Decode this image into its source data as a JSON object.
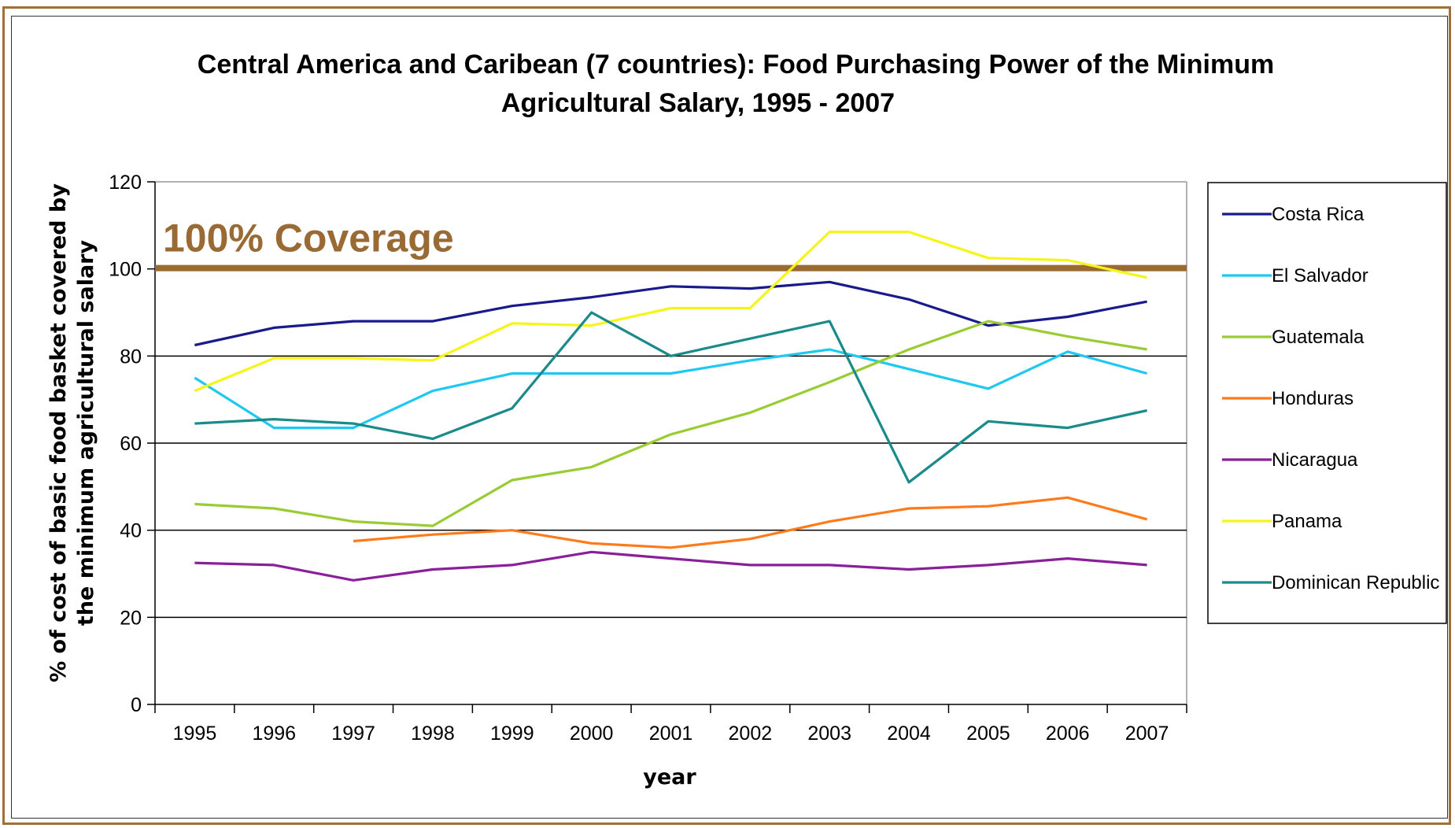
{
  "chart_data": {
    "type": "line",
    "title_line1": "Central America and Caribean (7 countries): Food Purchasing Power of the Minimum",
    "title_line2": "Agricultural Salary, 1995 - 2007",
    "xlabel": "year",
    "ylabel_line1": "% of cost of basic food basket covered by",
    "ylabel_line2": "the minimum  agricultural  salary",
    "ylim": [
      0,
      120
    ],
    "yticks": [
      0,
      20,
      40,
      60,
      80,
      100,
      120
    ],
    "grid": "horizontal",
    "legend_position": "right",
    "categories": [
      "1995",
      "1996",
      "1997",
      "1998",
      "1999",
      "2000",
      "2001",
      "2002",
      "2003",
      "2004",
      "2005",
      "2006",
      "2007"
    ],
    "reference_line": {
      "value": 100,
      "label": "100% Coverage",
      "color": "#9a6a35"
    },
    "series": [
      {
        "name": "Costa Rica",
        "color": "#1a1a8c",
        "values": [
          82.5,
          86.5,
          88,
          88,
          91.5,
          93.5,
          96,
          95.5,
          97,
          93,
          87,
          89,
          92.5
        ]
      },
      {
        "name": "El Salvador",
        "color": "#1ec8f0",
        "values": [
          75,
          63.5,
          63.5,
          72,
          76,
          76,
          76,
          79,
          81.5,
          77,
          72.5,
          81,
          76
        ]
      },
      {
        "name": "Guatemala",
        "color": "#99cc33",
        "values": [
          46,
          45,
          42,
          41,
          51.5,
          54.5,
          62,
          67,
          74,
          81.5,
          88,
          84.5,
          81.5
        ]
      },
      {
        "name": "Honduras",
        "color": "#ff7a1a",
        "values": [
          null,
          null,
          37.5,
          39,
          40,
          37,
          36,
          38,
          42,
          45,
          45.5,
          47.5,
          42.5
        ]
      },
      {
        "name": "Nicaragua",
        "color": "#8a1f9a",
        "values": [
          32.5,
          32,
          28.5,
          31,
          32,
          35,
          33.5,
          32,
          32,
          31,
          32,
          33.5,
          32
        ]
      },
      {
        "name": "Panama",
        "color": "#f5f51a",
        "values": [
          72,
          79.5,
          79.5,
          79,
          87.5,
          87,
          91,
          91,
          108.5,
          108.5,
          102.5,
          102,
          98
        ]
      },
      {
        "name": "Dominican Republic",
        "color": "#1a8a8a",
        "values": [
          64.5,
          65.5,
          64.5,
          61,
          68,
          90,
          80,
          84,
          88,
          51,
          65,
          63.5,
          67.5
        ]
      }
    ]
  }
}
